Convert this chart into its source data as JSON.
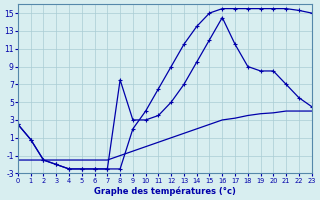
{
  "xlabel": "Graphe des températures (°c)",
  "xlim": [
    0,
    23
  ],
  "ylim": [
    -3,
    16
  ],
  "xticks": [
    0,
    1,
    2,
    3,
    4,
    5,
    6,
    7,
    8,
    9,
    10,
    11,
    12,
    13,
    14,
    15,
    16,
    17,
    18,
    19,
    20,
    21,
    22,
    23
  ],
  "yticks": [
    -3,
    -1,
    1,
    3,
    5,
    7,
    9,
    11,
    13,
    15
  ],
  "bg_color": "#d8eef0",
  "grid_color": "#aaccd4",
  "line_color": "#0000aa",
  "line1_x": [
    0,
    1,
    2,
    3,
    4,
    5,
    6,
    7,
    8,
    9,
    10,
    11,
    12,
    13,
    14,
    15,
    16,
    17,
    18,
    19,
    20,
    21,
    22,
    23
  ],
  "line1_y": [
    2.5,
    0.8,
    -1.5,
    -2.0,
    -2.5,
    -2.5,
    -2.5,
    -2.5,
    -2.5,
    2.0,
    4.0,
    6.5,
    9.0,
    11.5,
    13.5,
    15.0,
    15.5,
    15.5,
    15.5,
    15.5,
    15.5,
    15.5,
    15.3,
    15.0
  ],
  "line2_x": [
    0,
    1,
    2,
    3,
    4,
    5,
    6,
    7,
    8,
    9,
    10,
    11,
    12,
    13,
    14,
    15,
    16,
    17,
    18,
    19,
    20,
    21,
    22,
    23
  ],
  "line2_y": [
    2.5,
    0.8,
    -1.5,
    -2.0,
    -2.5,
    -2.5,
    -2.5,
    -2.5,
    7.5,
    3.0,
    3.0,
    3.5,
    5.0,
    7.0,
    9.5,
    12.0,
    14.5,
    11.5,
    9.0,
    8.5,
    8.5,
    7.0,
    5.5,
    4.5
  ],
  "line3_x": [
    0,
    23
  ],
  "line3_y": [
    -1.5,
    4.0
  ],
  "line3_full_x": [
    0,
    1,
    2,
    3,
    4,
    5,
    6,
    7,
    8,
    9,
    10,
    11,
    12,
    13,
    14,
    15,
    16,
    17,
    18,
    19,
    20,
    21,
    22,
    23
  ],
  "line3_full_y": [
    -1.5,
    -1.5,
    -1.5,
    -1.5,
    -1.5,
    -1.5,
    -1.5,
    -1.5,
    -1.0,
    -0.5,
    0.0,
    0.5,
    1.0,
    1.5,
    2.0,
    2.5,
    3.0,
    3.2,
    3.5,
    3.7,
    3.8,
    4.0,
    4.0,
    4.0
  ]
}
